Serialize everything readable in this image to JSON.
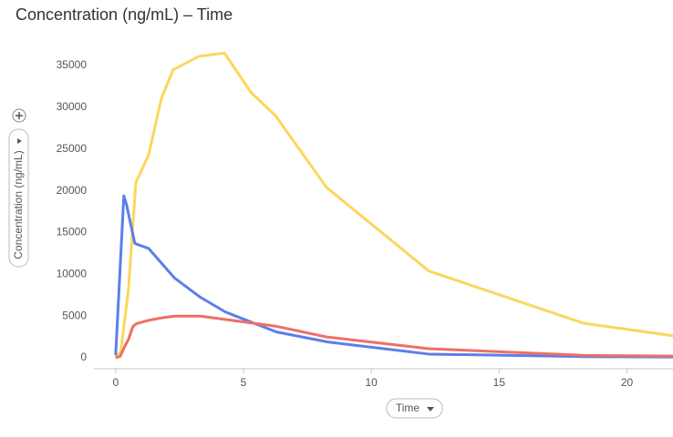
{
  "chart_data": {
    "type": "line",
    "title": "Concentration (ng/mL) – Time",
    "y_label": "Concentration (ng/mL)",
    "x_label": "Time",
    "xlim": [
      -0.85,
      21.8
    ],
    "ylim": [
      -1300,
      37400
    ],
    "xticks": [
      0,
      5,
      10,
      15,
      20
    ],
    "yticks": [
      0,
      5000,
      10000,
      15000,
      20000,
      25000,
      30000,
      35000
    ],
    "grid": false,
    "series": [
      {
        "color": "#fbd75b",
        "x": [
          0,
          0.2,
          0.36,
          0.5,
          0.79,
          1.29,
          1.79,
          2.25,
          3.25,
          4.25,
          5.29,
          6.25,
          8.25,
          12.25,
          18.3,
          24
        ],
        "values": [
          0,
          800,
          4700,
          8200,
          21000,
          24300,
          31100,
          34500,
          36100,
          36500,
          31800,
          29000,
          20400,
          10400,
          4150,
          1700
        ]
      },
      {
        "color": "#5b7fea",
        "x": [
          0,
          0.2,
          0.32,
          0.43,
          0.54,
          0.75,
          1.29,
          2.29,
          3.29,
          4.29,
          6.29,
          8.3,
          12.25,
          18.3,
          24
        ],
        "values": [
          300,
          12300,
          19400,
          18300,
          16700,
          13700,
          13100,
          9600,
          7300,
          5500,
          3100,
          1900,
          450,
          150,
          80
        ]
      },
      {
        "color": "#ee7064",
        "x": [
          0,
          0.18,
          0.36,
          0.5,
          0.68,
          0.82,
          1.29,
          1.82,
          2.32,
          3.32,
          4.29,
          6.25,
          8.25,
          12.25,
          18.3,
          24
        ],
        "values": [
          0,
          200,
          1400,
          2200,
          3800,
          4100,
          4500,
          4800,
          5000,
          5000,
          4600,
          3800,
          2500,
          1100,
          300,
          150
        ]
      }
    ]
  }
}
